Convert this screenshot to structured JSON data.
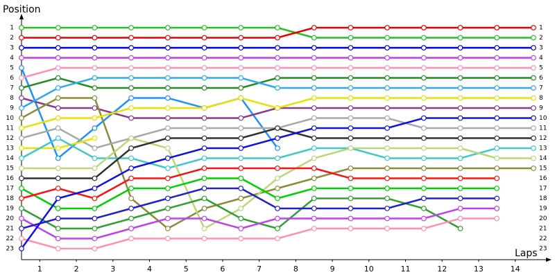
{
  "chart_data": {
    "type": "line",
    "y_label": "Position",
    "x_label": "Laps",
    "x": [
      0,
      1,
      2,
      3,
      4,
      5,
      6,
      7,
      8,
      9,
      10,
      11,
      12,
      13,
      14
    ],
    "xlim": [
      0,
      14
    ],
    "xticks": [
      {
        "value": 0.5,
        "label": "1"
      },
      {
        "value": 1.5,
        "label": "2"
      },
      {
        "value": 2.5,
        "label": "3"
      },
      {
        "value": 3.5,
        "label": "4"
      },
      {
        "value": 4.5,
        "label": "5"
      },
      {
        "value": 5.5,
        "label": "6"
      },
      {
        "value": 6.5,
        "label": "7"
      },
      {
        "value": 7.5,
        "label": "8"
      },
      {
        "value": 8.5,
        "label": "9"
      },
      {
        "value": 9.5,
        "label": "10"
      },
      {
        "value": 10.5,
        "label": "11"
      },
      {
        "value": 11.5,
        "label": "12"
      },
      {
        "value": 12.5,
        "label": "13"
      },
      {
        "value": 13.5,
        "label": "14"
      }
    ],
    "ylim": [
      1,
      23
    ],
    "y_reversed": true,
    "yticks": [
      1,
      2,
      3,
      4,
      5,
      6,
      7,
      8,
      9,
      10,
      11,
      12,
      13,
      14,
      15,
      16,
      17,
      18,
      19,
      20,
      21,
      22,
      23
    ],
    "series": [
      {
        "color": "#22c022",
        "values": [
          1,
          1,
          1,
          1,
          1,
          1,
          1,
          1,
          2,
          2,
          2,
          2,
          2,
          2,
          2
        ]
      },
      {
        "color": "#e80000",
        "values": [
          2,
          2,
          2,
          2,
          2,
          2,
          2,
          2,
          1,
          1,
          1,
          1,
          1,
          1,
          1
        ]
      },
      {
        "color": "#0000e0",
        "values": [
          3,
          3,
          3,
          3,
          3,
          3,
          3,
          3,
          3,
          3,
          3,
          3,
          3,
          3,
          3
        ]
      },
      {
        "color": "#c040e8",
        "values": [
          4,
          4,
          4,
          4,
          4,
          4,
          4,
          4,
          4,
          4,
          4,
          4,
          4,
          4,
          4
        ]
      },
      {
        "color": "#1e90ff",
        "values": [
          5,
          14,
          11,
          8,
          8,
          9,
          8,
          13,
          null,
          null,
          null,
          null,
          null,
          null,
          null
        ]
      },
      {
        "color": "#ff90b0",
        "values": [
          6,
          5,
          5,
          5,
          5,
          5,
          5,
          5,
          5,
          5,
          5,
          5,
          5,
          5,
          5
        ]
      },
      {
        "color": "#228b22",
        "values": [
          7,
          6,
          7,
          7,
          7,
          7,
          7,
          6,
          6,
          6,
          6,
          6,
          6,
          6,
          6
        ]
      },
      {
        "color": "#8b3a8b",
        "values": [
          8,
          9,
          9,
          10,
          10,
          10,
          10,
          9,
          9,
          9,
          9,
          9,
          9,
          9,
          9
        ]
      },
      {
        "color": "#30a8f0",
        "values": [
          9,
          7,
          6,
          6,
          6,
          6,
          6,
          7,
          7,
          7,
          7,
          7,
          7,
          7,
          7
        ]
      },
      {
        "color": "#8b8b3a",
        "values": [
          10,
          8,
          8,
          18,
          21,
          19,
          18,
          17,
          16,
          15,
          15,
          15,
          15,
          15,
          15
        ]
      },
      {
        "color": "#e8e000",
        "values": [
          11,
          10,
          10,
          9,
          9,
          9,
          8,
          9,
          8,
          8,
          8,
          8,
          8,
          8,
          8
        ]
      },
      {
        "color": "#a8a8a8",
        "values": [
          12,
          11,
          13,
          12,
          11,
          11,
          11,
          11,
          10,
          10,
          10,
          11,
          11,
          11,
          11
        ]
      },
      {
        "color": "#f0e000",
        "values": [
          13,
          13,
          12,
          null,
          null,
          null,
          null,
          null,
          null,
          null,
          null,
          null,
          null,
          null,
          null
        ]
      },
      {
        "color": "#40c8c8",
        "values": [
          14,
          12,
          14,
          14,
          15,
          14,
          14,
          14,
          13,
          13,
          14,
          14,
          14,
          13,
          13
        ]
      },
      {
        "color": "#b8d878",
        "values": [
          15,
          15,
          15,
          12,
          13,
          21,
          19,
          16,
          14,
          13,
          13,
          13,
          13,
          14,
          14
        ]
      },
      {
        "color": "#303030",
        "values": [
          16,
          16,
          16,
          13,
          12,
          12,
          12,
          11,
          12,
          12,
          12,
          12,
          12,
          12,
          12
        ]
      },
      {
        "color": "#00d000",
        "values": [
          17,
          19,
          19,
          17,
          17,
          16,
          16,
          18,
          17,
          17,
          17,
          17,
          17,
          17,
          null
        ]
      },
      {
        "color": "#ff1010",
        "values": [
          18,
          17,
          18,
          16,
          16,
          15,
          15,
          15,
          15,
          16,
          16,
          16,
          16,
          16,
          null
        ]
      },
      {
        "color": "#30a030",
        "values": [
          19,
          21,
          21,
          20,
          19,
          18,
          20,
          21,
          18,
          18,
          18,
          19,
          21,
          null,
          null
        ]
      },
      {
        "color": "#c040f0",
        "values": [
          20,
          22,
          22,
          21,
          20,
          20,
          21,
          20,
          20,
          20,
          20,
          20,
          19,
          19,
          null
        ]
      },
      {
        "color": "#2020d0",
        "values": [
          21,
          20,
          20,
          19,
          18,
          17,
          17,
          19,
          19,
          19,
          19,
          18,
          18,
          18,
          null
        ]
      },
      {
        "color": "#ff90b0",
        "values": [
          22,
          23,
          23,
          22,
          22,
          22,
          22,
          22,
          21,
          21,
          21,
          21,
          20,
          20,
          null
        ]
      },
      {
        "color": "#1010e0",
        "values": [
          23,
          18,
          17,
          15,
          14,
          13,
          13,
          12,
          11,
          11,
          11,
          10,
          10,
          10,
          10
        ]
      }
    ]
  }
}
